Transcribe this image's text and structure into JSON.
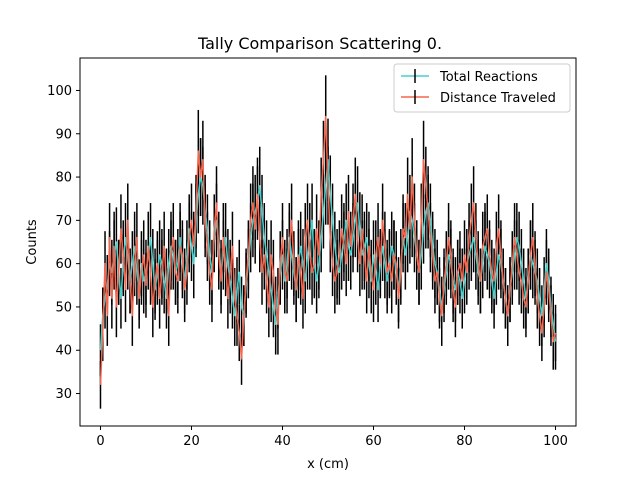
{
  "chart_data": {
    "type": "line",
    "title": "Tally Comparison Scattering 0.",
    "xlabel": "x (cm)",
    "ylabel": "Counts",
    "xlim": [
      -4.5,
      104.5
    ],
    "ylim": [
      22.5,
      107.5
    ],
    "xticks": [
      0,
      20,
      40,
      60,
      80,
      100
    ],
    "yticks": [
      30,
      40,
      50,
      60,
      70,
      80,
      90,
      100
    ],
    "grid": false,
    "legend_position": "top-right",
    "errorbar_color": "#000000",
    "x": [
      0,
      0.5,
      1,
      1.5,
      2,
      2.5,
      3,
      3.5,
      4,
      4.5,
      5,
      5.5,
      6,
      6.5,
      7,
      7.5,
      8,
      8.5,
      9,
      9.5,
      10,
      10.5,
      11,
      11.5,
      12,
      12.5,
      13,
      13.5,
      14,
      14.5,
      15,
      15.5,
      16,
      16.5,
      17,
      17.5,
      18,
      18.5,
      19,
      19.5,
      20,
      20.5,
      21,
      21.5,
      22,
      22.5,
      23,
      23.5,
      24,
      24.5,
      25,
      25.5,
      26,
      26.5,
      27,
      27.5,
      28,
      28.5,
      29,
      29.5,
      30,
      30.5,
      31,
      31.5,
      32,
      32.5,
      33,
      33.5,
      34,
      34.5,
      35,
      35.5,
      36,
      36.5,
      37,
      37.5,
      38,
      38.5,
      39,
      39.5,
      40,
      40.5,
      41,
      41.5,
      42,
      42.5,
      43,
      43.5,
      44,
      44.5,
      45,
      45.5,
      46,
      46.5,
      47,
      47.5,
      48,
      48.5,
      49,
      49.5,
      50,
      50.5,
      51,
      51.5,
      52,
      52.5,
      53,
      53.5,
      54,
      54.5,
      55,
      55.5,
      56,
      56.5,
      57,
      57.5,
      58,
      58.5,
      59,
      59.5,
      60,
      60.5,
      61,
      61.5,
      62,
      62.5,
      63,
      63.5,
      64,
      64.5,
      65,
      65.5,
      66,
      66.5,
      67,
      67.5,
      68,
      68.5,
      69,
      69.5,
      70,
      70.5,
      71,
      71.5,
      72,
      72.5,
      73,
      73.5,
      74,
      74.5,
      75,
      75.5,
      76,
      76.5,
      77,
      77.5,
      78,
      78.5,
      79,
      79.5,
      80,
      80.5,
      81,
      81.5,
      82,
      82.5,
      83,
      83.5,
      84,
      84.5,
      85,
      85.5,
      86,
      86.5,
      87,
      87.5,
      88,
      88.5,
      89,
      89.5,
      90,
      90.5,
      91,
      91.5,
      92,
      92.5,
      93,
      93.5,
      94,
      94.5,
      95,
      95.5,
      96,
      96.5,
      97,
      97.5,
      98,
      98.5,
      99,
      99.5,
      100
    ],
    "series": [
      {
        "name": "Total Reactions",
        "color": "#48d1cc",
        "values": [
          40,
          48,
          52,
          55,
          60,
          58,
          62,
          65,
          58,
          52,
          60,
          66,
          62,
          56,
          60,
          64,
          58,
          54,
          60,
          56,
          58,
          62,
          66,
          60,
          54,
          58,
          62,
          60,
          56,
          52,
          60,
          64,
          62,
          58,
          60,
          66,
          60,
          56,
          62,
          68,
          64,
          60,
          70,
          76,
          80,
          78,
          72,
          68,
          62,
          58,
          66,
          70,
          64,
          58,
          62,
          66,
          60,
          56,
          52,
          48,
          54,
          58,
          50,
          48,
          55,
          60,
          66,
          70,
          72,
          74,
          78,
          72,
          66,
          62,
          58,
          54,
          50,
          46,
          52,
          58,
          62,
          56,
          60,
          66,
          62,
          58,
          54,
          60,
          64,
          60,
          56,
          62,
          66,
          70,
          60,
          56,
          60,
          66,
          72,
          78,
          84,
          76,
          70,
          64,
          60,
          58,
          62,
          66,
          70,
          64,
          62,
          66,
          70,
          74,
          68,
          62,
          64,
          66,
          60,
          56,
          62,
          58,
          54,
          60,
          64,
          60,
          56,
          60,
          64,
          62,
          58,
          54,
          60,
          66,
          62,
          66,
          72,
          70,
          66,
          62,
          58,
          62,
          68,
          72,
          74,
          70,
          64,
          60,
          58,
          54,
          50,
          54,
          58,
          62,
          60,
          56,
          54,
          58,
          56,
          52,
          56,
          60,
          62,
          64,
          66,
          62,
          58,
          56,
          60,
          64,
          62,
          60,
          56,
          52,
          58,
          62,
          60,
          56,
          52,
          48,
          54,
          58,
          62,
          66,
          64,
          60,
          56,
          52,
          56,
          62,
          60,
          58,
          56,
          52,
          48,
          54,
          60,
          56,
          50,
          46,
          42
        ],
        "errors": [
          6,
          6.5,
          7,
          7,
          7.5,
          7.5,
          8,
          8,
          7.5,
          7,
          7.5,
          8,
          8,
          7.5,
          7.5,
          8,
          7.5,
          7,
          7.5,
          7.5,
          7.5,
          8,
          8,
          8,
          7,
          7.5,
          8,
          8,
          7.5,
          7,
          8,
          8,
          8,
          7.5,
          8,
          8,
          8,
          7.5,
          8,
          8,
          8,
          8,
          8.5,
          9,
          9,
          9,
          8.5,
          8,
          8,
          7.5,
          8,
          8.5,
          8,
          7.5,
          8,
          8,
          8,
          7.5,
          7,
          7,
          7.5,
          7.5,
          7,
          7,
          7.5,
          8,
          8,
          8.5,
          8.5,
          8.5,
          9,
          8.5,
          8,
          8,
          7.5,
          7.5,
          7,
          7,
          7,
          7.5,
          8,
          7.5,
          8,
          8,
          8,
          7.5,
          7.5,
          8,
          8,
          8,
          7.5,
          8,
          8,
          8.5,
          8,
          7.5,
          8,
          8,
          8.5,
          9,
          9.5,
          9,
          8.5,
          8,
          8,
          7.5,
          8,
          8,
          8.5,
          8,
          8,
          8,
          8.5,
          8.5,
          8.5,
          8,
          8,
          8,
          8,
          7.5,
          8,
          7.5,
          7.5,
          8,
          8,
          8,
          7.5,
          8,
          8,
          8,
          7.5,
          7.5,
          8,
          8,
          8,
          8,
          8.5,
          8.5,
          8,
          8,
          7.5,
          8,
          8,
          8.5,
          8.5,
          8.5,
          8,
          8,
          7.5,
          7.5,
          7,
          7.5,
          7.5,
          8,
          8,
          7.5,
          7.5,
          7.5,
          7.5,
          7,
          7.5,
          8,
          8,
          8,
          8,
          8,
          7.5,
          7.5,
          8,
          8,
          8,
          8,
          7.5,
          7,
          7.5,
          8,
          8,
          7.5,
          7,
          7,
          7.5,
          7.5,
          8,
          8,
          8,
          8,
          7.5,
          7,
          7.5,
          8,
          8,
          7.5,
          7.5,
          7,
          7,
          7.5,
          8,
          7.5,
          7,
          7,
          6.5
        ]
      },
      {
        "name": "Distance Traveled",
        "color": "#f4664e",
        "values": [
          32,
          44,
          60,
          48,
          66,
          52,
          64,
          50,
          58,
          68,
          62,
          54,
          70,
          56,
          48,
          60,
          66,
          52,
          58,
          62,
          55,
          64,
          58,
          50,
          56,
          60,
          52,
          58,
          64,
          56,
          48,
          62,
          66,
          58,
          56,
          64,
          62,
          54,
          58,
          66,
          70,
          64,
          72,
          86,
          80,
          84,
          70,
          64,
          58,
          54,
          68,
          74,
          62,
          56,
          66,
          60,
          52,
          58,
          64,
          52,
          48,
          44,
          38,
          48,
          56,
          62,
          70,
          74,
          68,
          76,
          66,
          58,
          62,
          56,
          50,
          62,
          58,
          50,
          46,
          60,
          66,
          58,
          56,
          64,
          70,
          60,
          54,
          62,
          58,
          52,
          66,
          70,
          62,
          58,
          60,
          68,
          62,
          76,
          84,
          94,
          78,
          66,
          60,
          56,
          58,
          62,
          68,
          64,
          60,
          72,
          64,
          70,
          76,
          66,
          60,
          68,
          62,
          56,
          64,
          58,
          54,
          62,
          66,
          60,
          70,
          64,
          58,
          60,
          56,
          62,
          60,
          52,
          58,
          68,
          66,
          76,
          68,
          80,
          70,
          62,
          58,
          70,
          84,
          78,
          72,
          66,
          62,
          56,
          58,
          52,
          48,
          56,
          60,
          66,
          62,
          54,
          50,
          58,
          60,
          56,
          62,
          58,
          66,
          70,
          74,
          66,
          60,
          56,
          64,
          66,
          68,
          62,
          58,
          56,
          64,
          68,
          62,
          56,
          52,
          48,
          54,
          60,
          66,
          62,
          58,
          56,
          52,
          50,
          56,
          62,
          66,
          60,
          52,
          48,
          44,
          50,
          58,
          54,
          48,
          42,
          44
        ],
        "errors": [
          5.5,
          6.5,
          7.5,
          7,
          8,
          7,
          8,
          7,
          7.5,
          8,
          8,
          7.5,
          8.5,
          7.5,
          7,
          7.5,
          8,
          7,
          7.5,
          8,
          7.5,
          8,
          7.5,
          7,
          7.5,
          7.5,
          7,
          7.5,
          8,
          7.5,
          7,
          8,
          8,
          7.5,
          7.5,
          8,
          8,
          7.5,
          7.5,
          8,
          8.5,
          8,
          8.5,
          9.5,
          9,
          9,
          8.5,
          8,
          7.5,
          7.5,
          8,
          8.5,
          8,
          7.5,
          8,
          7.5,
          7,
          7.5,
          8,
          7,
          7,
          6.5,
          6,
          7,
          7.5,
          8,
          8.5,
          8.5,
          8,
          8.5,
          8,
          7.5,
          8,
          7.5,
          7,
          8,
          7.5,
          7,
          7,
          7.5,
          8,
          7.5,
          7.5,
          8,
          8.5,
          7.5,
          7.5,
          8,
          7.5,
          7,
          8,
          8.5,
          8,
          7.5,
          7.5,
          8,
          8,
          8.5,
          9,
          9.5,
          9,
          8,
          7.5,
          7.5,
          7.5,
          8,
          8,
          8,
          7.5,
          8.5,
          8,
          8.5,
          8.5,
          8,
          7.5,
          8,
          8,
          7.5,
          8,
          7.5,
          7.5,
          8,
          8,
          7.5,
          8.5,
          8,
          7.5,
          7.5,
          7.5,
          8,
          7.5,
          7,
          7.5,
          8,
          8,
          8.5,
          8,
          9,
          8.5,
          8,
          7.5,
          8.5,
          9,
          9,
          8.5,
          8,
          8,
          7.5,
          7.5,
          7,
          7,
          7.5,
          7.5,
          8,
          8,
          7.5,
          7,
          7.5,
          7.5,
          7.5,
          8,
          7.5,
          8,
          8.5,
          8.5,
          8,
          7.5,
          7.5,
          8,
          8,
          8,
          8,
          7.5,
          7.5,
          8,
          8,
          8,
          7.5,
          7,
          7,
          7.5,
          7.5,
          8,
          8,
          7.5,
          7.5,
          7,
          7,
          7.5,
          8,
          8,
          7.5,
          7,
          7,
          6.5,
          7,
          7.5,
          7.5,
          7,
          6.5,
          6.5
        ]
      }
    ]
  }
}
